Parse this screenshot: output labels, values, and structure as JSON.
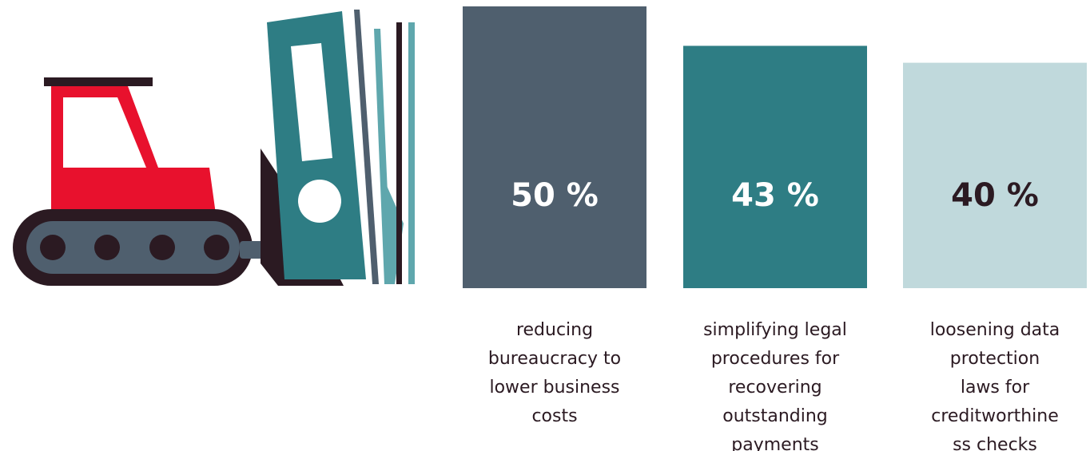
{
  "chart_data": {
    "type": "bar",
    "categories": [
      [
        "reducing",
        "bureaucracy to",
        "lower business",
        "costs"
      ],
      [
        "simplifying legal",
        "procedures for",
        "recovering",
        "outstanding",
        "payments"
      ],
      [
        "loosening data",
        "protection",
        "laws for",
        "creditworthine",
        "ss checks"
      ]
    ],
    "values": [
      50,
      43,
      40
    ],
    "value_labels": [
      "50 %",
      "43 %",
      "40 %"
    ],
    "unit": "%",
    "bar_colors": [
      "#4f5f6e",
      "#2e7d84",
      "#c0d9dc"
    ],
    "value_label_colors": [
      "#ffffff",
      "#ffffff",
      "#2b1a22"
    ],
    "title": "",
    "xlabel": "",
    "ylabel": "",
    "grid": false,
    "legend": "none"
  },
  "illustration": {
    "icon": "bulldozer-pushing-folders-icon",
    "colors": {
      "cab": "#e8112d",
      "track": "#2b1a22",
      "body": "#4f5f6e",
      "folder": "#2e7d84",
      "folder_light": "#5fa7ad"
    }
  }
}
